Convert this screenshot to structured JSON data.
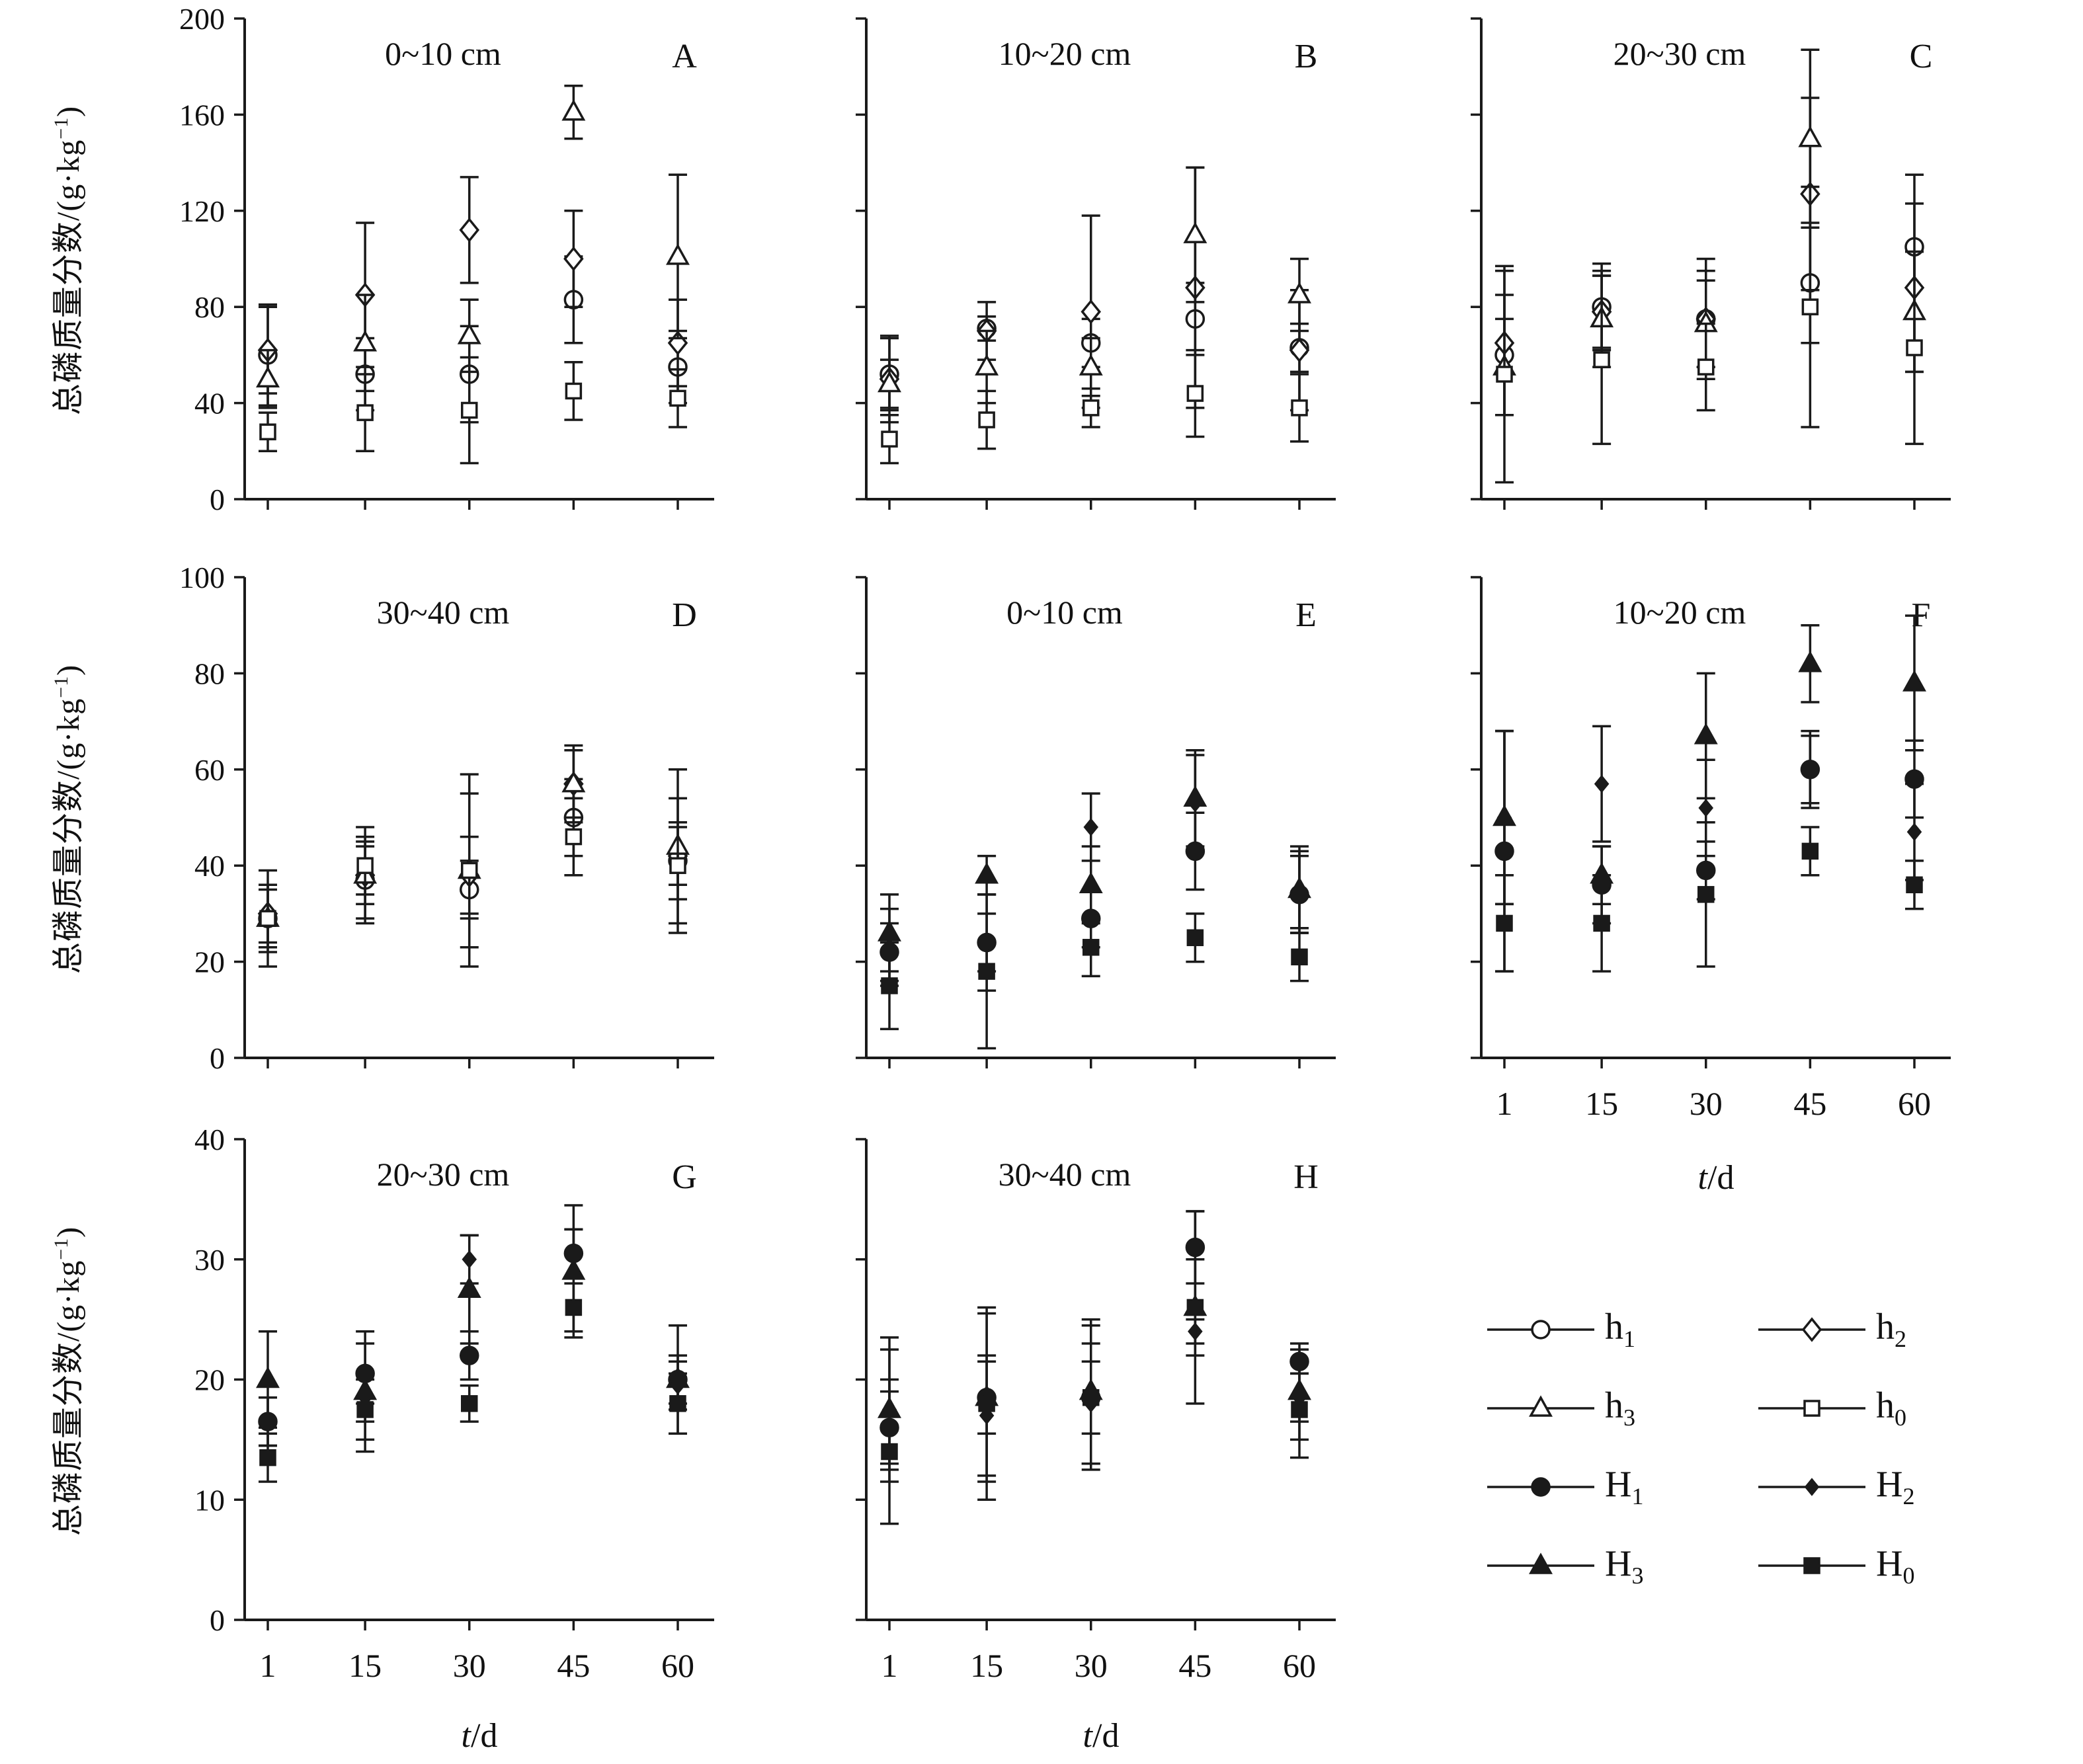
{
  "figure": {
    "bg": "#ffffff",
    "ink": "#1a1a1a"
  },
  "axis": {
    "ylabel_main": "总磷质量分数/(g·kg",
    "ylabel_sup": "−1",
    "ylabel_close": ")",
    "xlabel_italic": "t",
    "xlabel_rest": "/d"
  },
  "legend": {
    "items": [
      {
        "base": "h",
        "sub": "1",
        "marker": "circle-open"
      },
      {
        "base": "h",
        "sub": "2",
        "marker": "diamond-open"
      },
      {
        "base": "h",
        "sub": "3",
        "marker": "triangle-open"
      },
      {
        "base": "h",
        "sub": "0",
        "marker": "square-open"
      },
      {
        "base": "H",
        "sub": "1",
        "marker": "circle-filled"
      },
      {
        "base": "H",
        "sub": "2",
        "marker": "diamond-filled"
      },
      {
        "base": "H",
        "sub": "3",
        "marker": "triangle-filled"
      },
      {
        "base": "H",
        "sub": "0",
        "marker": "square-filled"
      }
    ]
  },
  "chart_data": {
    "type": "errorbar-scatter",
    "x": [
      1,
      15,
      30,
      45,
      60
    ],
    "xlabel": "t/d",
    "ylabel": "总磷质量分数/(g·kg⁻¹)",
    "legend_position": "bottom-right",
    "grid": false,
    "panels": [
      {
        "id": "A",
        "depth": "0~10 cm",
        "ylim": [
          0,
          200
        ],
        "yticks": [
          0,
          40,
          80,
          120,
          160,
          200
        ],
        "ytick_labels": true,
        "xtick_labels": false,
        "show_xlabel": false,
        "series": [
          {
            "name": "h1",
            "marker": "circle-open",
            "values": [
              60,
              52,
              52,
              83,
              55
            ],
            "err": [
              21,
              15,
              20,
              18,
              15
            ]
          },
          {
            "name": "h2",
            "marker": "diamond-open",
            "values": [
              62,
              85,
              112,
              100,
              65
            ],
            "err": [
              18,
              30,
              22,
              20,
              18
            ]
          },
          {
            "name": "h3",
            "marker": "triangle-open",
            "values": [
              50,
              65,
              68,
              161,
              101
            ],
            "err": [
              12,
              20,
              15,
              11,
              34
            ]
          },
          {
            "name": "h0",
            "marker": "square-open",
            "values": [
              28,
              36,
              37,
              45,
              42
            ],
            "err": [
              8,
              16,
              22,
              12,
              12
            ]
          }
        ]
      },
      {
        "id": "B",
        "depth": "10~20 cm",
        "ylim": [
          0,
          200
        ],
        "yticks": [
          0,
          40,
          80,
          120,
          160,
          200
        ],
        "ytick_labels": false,
        "xtick_labels": false,
        "show_xlabel": false,
        "series": [
          {
            "name": "h1",
            "marker": "circle-open",
            "values": [
              52,
              71,
              65,
              75,
              63
            ],
            "err": [
              15,
              5,
              10,
              15,
              10
            ]
          },
          {
            "name": "h2",
            "marker": "diamond-open",
            "values": [
              50,
              70,
              78,
              88,
              62
            ],
            "err": [
              18,
              12,
              40,
              50,
              25
            ]
          },
          {
            "name": "h3",
            "marker": "triangle-open",
            "values": [
              48,
              55,
              55,
              110,
              85
            ],
            "err": [
              10,
              15,
              12,
              28,
              15
            ]
          },
          {
            "name": "h0",
            "marker": "square-open",
            "values": [
              25,
              33,
              38,
              44,
              38
            ],
            "err": [
              10,
              12,
              8,
              18,
              14
            ]
          }
        ]
      },
      {
        "id": "C",
        "depth": "20~30 cm",
        "ylim": [
          0,
          200
        ],
        "yticks": [
          0,
          40,
          80,
          120,
          160,
          200
        ],
        "ytick_labels": false,
        "xtick_labels": false,
        "show_xlabel": false,
        "series": [
          {
            "name": "h1",
            "marker": "circle-open",
            "values": [
              60,
              80,
              75,
              90,
              105
            ],
            "err": [
              25,
              18,
              20,
              25,
              30
            ]
          },
          {
            "name": "h2",
            "marker": "diamond-open",
            "values": [
              65,
              78,
              75,
              127,
              88
            ],
            "err": [
              30,
              15,
              25,
              40,
              35
            ]
          },
          {
            "name": "h3",
            "marker": "triangle-open",
            "values": [
              55,
              75,
              73,
              150,
              78
            ],
            "err": [
              20,
              20,
              18,
              37,
              25
            ]
          },
          {
            "name": "h0",
            "marker": "square-open",
            "values": [
              52,
              58,
              55,
              80,
              63
            ],
            "err": [
              45,
              35,
              18,
              50,
              40
            ]
          }
        ]
      },
      {
        "id": "D",
        "depth": "30~40 cm",
        "ylim": [
          0,
          100
        ],
        "yticks": [
          0,
          20,
          40,
          60,
          80,
          100
        ],
        "ytick_labels": true,
        "xtick_labels": false,
        "show_xlabel": false,
        "series": [
          {
            "name": "h1",
            "marker": "circle-open",
            "values": [
              29,
              37,
              35,
              50,
              41
            ],
            "err": [
              6,
              8,
              6,
              8,
              8
            ]
          },
          {
            "name": "h2",
            "marker": "diamond-open",
            "values": [
              30,
              38,
              38,
              57,
              42
            ],
            "err": [
              6,
              6,
              8,
              8,
              6
            ]
          },
          {
            "name": "h3",
            "marker": "triangle-open",
            "values": [
              29,
              38,
              39,
              57,
              44
            ],
            "err": [
              7,
              10,
              20,
              7,
              16
            ]
          },
          {
            "name": "h0",
            "marker": "square-open",
            "values": [
              29,
              40,
              39,
              46,
              40
            ],
            "err": [
              10,
              6,
              16,
              8,
              14
            ]
          }
        ]
      },
      {
        "id": "E",
        "depth": "0~10 cm",
        "ylim": [
          0,
          100
        ],
        "yticks": [
          0,
          20,
          40,
          60,
          80,
          100
        ],
        "ytick_labels": false,
        "xtick_labels": false,
        "show_xlabel": false,
        "series": [
          {
            "name": "H1",
            "marker": "circle-filled",
            "values": [
              22,
              24,
              29,
              43,
              34
            ],
            "err": [
              6,
              6,
              6,
              8,
              8
            ]
          },
          {
            "name": "H2",
            "marker": "diamond-filled",
            "values": [
              23,
              24,
              48,
              53,
              35
            ],
            "err": [
              8,
              10,
              7,
              10,
              9
            ]
          },
          {
            "name": "H3",
            "marker": "triangle-filled",
            "values": [
              26,
              38,
              36,
              54,
              35
            ],
            "err": [
              8,
              4,
              8,
              10,
              8
            ]
          },
          {
            "name": "H0",
            "marker": "square-filled",
            "values": [
              15,
              18,
              23,
              25,
              21
            ],
            "err": [
              9,
              16,
              6,
              5,
              5
            ]
          }
        ]
      },
      {
        "id": "F",
        "depth": "10~20 cm",
        "ylim": [
          0,
          100
        ],
        "yticks": [
          0,
          20,
          40,
          60,
          80,
          100
        ],
        "ytick_labels": false,
        "xtick_labels": true,
        "show_xlabel": true,
        "series": [
          {
            "name": "H1",
            "marker": "circle-filled",
            "values": [
              43,
              36,
              39,
              60,
              58
            ],
            "err": [
              25,
              8,
              6,
              7,
              8
            ]
          },
          {
            "name": "H2",
            "marker": "diamond-filled",
            "values": [
              50,
              57,
              52,
              60,
              47
            ],
            "err": [
              18,
              12,
              10,
              8,
              10
            ]
          },
          {
            "name": "H3",
            "marker": "triangle-filled",
            "values": [
              50,
              38,
              67,
              82,
              78
            ],
            "err": [
              18,
              6,
              13,
              8,
              14
            ]
          },
          {
            "name": "H0",
            "marker": "square-filled",
            "values": [
              28,
              28,
              34,
              43,
              36
            ],
            "err": [
              10,
              10,
              15,
              5,
              5
            ]
          }
        ]
      },
      {
        "id": "G",
        "depth": "20~30 cm",
        "ylim": [
          0,
          40
        ],
        "yticks": [
          0,
          10,
          20,
          30,
          40
        ],
        "ytick_labels": true,
        "xtick_labels": true,
        "show_xlabel": true,
        "series": [
          {
            "name": "H1",
            "marker": "circle-filled",
            "values": [
              16.5,
              20.5,
              22,
              30.5,
              20
            ],
            "err": [
              2,
              2.5,
              2,
              2,
              2
            ]
          },
          {
            "name": "H2",
            "marker": "diamond-filled",
            "values": [
              16.5,
              18.5,
              30,
              30.5,
              19.5
            ],
            "err": [
              2,
              2,
              2,
              2,
              2
            ]
          },
          {
            "name": "H3",
            "marker": "triangle-filled",
            "values": [
              20,
              19,
              27.5,
              29,
              20
            ],
            "err": [
              4,
              5,
              4.5,
              5.5,
              4.5
            ]
          },
          {
            "name": "H0",
            "marker": "square-filled",
            "values": [
              13.5,
              17.5,
              18,
              26,
              18
            ],
            "err": [
              2,
              2.5,
              1.5,
              2,
              2.5
            ]
          }
        ]
      },
      {
        "id": "H",
        "depth": "30~40 cm",
        "ylim": [
          0,
          40
        ],
        "yticks": [
          0,
          10,
          20,
          30,
          40
        ],
        "ytick_labels": false,
        "xtick_labels": true,
        "show_xlabel": true,
        "series": [
          {
            "name": "H1",
            "marker": "circle-filled",
            "values": [
              16,
              18.5,
              18.5,
              31,
              21.5
            ],
            "err": [
              3,
              3,
              3,
              3,
              1
            ]
          },
          {
            "name": "H2",
            "marker": "diamond-filled",
            "values": [
              17.5,
              17,
              18,
              24,
              18.5
            ],
            "err": [
              5,
              5,
              5,
              1,
              2
            ]
          },
          {
            "name": "H3",
            "marker": "triangle-filled",
            "values": [
              17.5,
              18.5,
              19,
              26,
              19
            ],
            "err": [
              6,
              7,
              6,
              8,
              4
            ]
          },
          {
            "name": "H0",
            "marker": "square-filled",
            "values": [
              14,
              18,
              18.5,
              26,
              17.5
            ],
            "err": [
              6,
              8,
              6,
              4,
              4
            ]
          }
        ]
      }
    ]
  }
}
